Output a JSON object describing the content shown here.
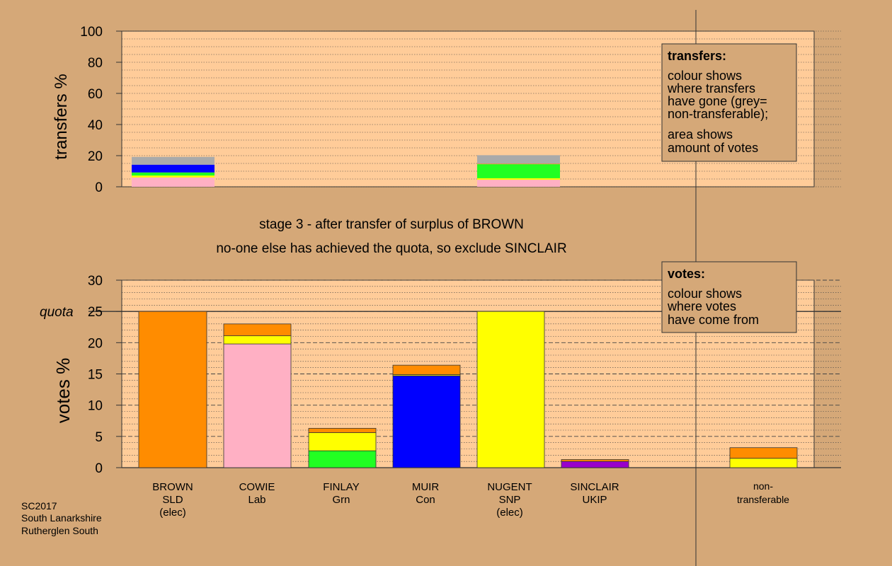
{
  "colors": {
    "background": "#D5A878",
    "plot_bg": "#FFCC99",
    "box_bg": "#D5A878",
    "orange": "#FF8C00",
    "pink": "#FFB0C4",
    "yellow": "#FFFF00",
    "green": "#22FF22",
    "blue": "#0000FF",
    "purple": "#9900CC",
    "grey": "#AAAAAA",
    "line": "#333333"
  },
  "top_chart": {
    "ylabel": "transfers %",
    "ticks": [
      "0",
      "20",
      "40",
      "60",
      "80",
      "100"
    ]
  },
  "bottom_chart": {
    "ylabel": "votes %",
    "ticks": [
      "0",
      "5",
      "10",
      "15",
      "20",
      "25",
      "30"
    ],
    "quota_label": "quota"
  },
  "stage_text": {
    "line1": "stage 3 - after transfer of surplus of BROWN",
    "line2": "no-one else has achieved the quota, so exclude SINCLAIR"
  },
  "transfers_box": {
    "title": "transfers:",
    "para1": [
      "colour shows",
      "where transfers",
      "have gone (grey=",
      "non-transferable);"
    ],
    "para2": [
      "area shows",
      "amount of votes"
    ]
  },
  "votes_box": {
    "title": "votes:",
    "para1": [
      "colour shows",
      "where votes",
      "have come from"
    ]
  },
  "candidates": [
    {
      "name": "BROWN",
      "party": "SLD",
      "status": "(elec)"
    },
    {
      "name": "COWIE",
      "party": "Lab",
      "status": ""
    },
    {
      "name": "FINLAY",
      "party": "Grn",
      "status": ""
    },
    {
      "name": "MUIR",
      "party": "Con",
      "status": ""
    },
    {
      "name": "NUGENT",
      "party": "SNP",
      "status": "(elec)"
    },
    {
      "name": "SINCLAIR",
      "party": "UKIP",
      "status": ""
    }
  ],
  "nontransferable_label": [
    "non-",
    "transferable"
  ],
  "footer": [
    "SC2017",
    "South Lanarkshire",
    "Rutherglen South"
  ],
  "chart_data": [
    {
      "type": "bar",
      "stacked": true,
      "ylabel": "transfers %",
      "ylim": [
        0,
        100
      ],
      "categories": [
        "BROWN",
        "COWIE",
        "FINLAY",
        "MUIR",
        "NUGENT",
        "SINCLAIR"
      ],
      "bars": [
        {
          "category": "BROWN",
          "segments": [
            {
              "color": "pink",
              "value": 6
            },
            {
              "color": "yellow",
              "value": 1.2
            },
            {
              "color": "green",
              "value": 2
            },
            {
              "color": "blue",
              "value": 5
            },
            {
              "color": "grey",
              "value": 5
            }
          ]
        },
        {
          "category": "NUGENT",
          "segments": [
            {
              "color": "pink",
              "value": 4.5
            },
            {
              "color": "yellow",
              "value": 1
            },
            {
              "color": "green",
              "value": 9
            },
            {
              "color": "orange",
              "value": 0.3
            },
            {
              "color": "grey",
              "value": 5.5
            }
          ]
        }
      ]
    },
    {
      "type": "bar",
      "stacked": true,
      "ylabel": "votes %",
      "ylim": [
        0,
        30
      ],
      "quota": 25,
      "categories": [
        "BROWN",
        "COWIE",
        "FINLAY",
        "MUIR",
        "NUGENT",
        "SINCLAIR",
        "non-transferable"
      ],
      "bars": [
        {
          "category": "BROWN",
          "segments": [
            {
              "color": "orange",
              "value": 25
            }
          ]
        },
        {
          "category": "COWIE",
          "segments": [
            {
              "color": "pink",
              "value": 19.8
            },
            {
              "color": "yellow",
              "value": 1.3
            },
            {
              "color": "orange",
              "value": 1.9
            }
          ]
        },
        {
          "category": "FINLAY",
          "segments": [
            {
              "color": "green",
              "value": 2.7
            },
            {
              "color": "yellow",
              "value": 2.9
            },
            {
              "color": "orange",
              "value": 0.7
            }
          ]
        },
        {
          "category": "MUIR",
          "segments": [
            {
              "color": "blue",
              "value": 14.7
            },
            {
              "color": "yellow",
              "value": 0.2
            },
            {
              "color": "orange",
              "value": 1.5
            }
          ]
        },
        {
          "category": "NUGENT",
          "segments": [
            {
              "color": "yellow",
              "value": 25
            }
          ]
        },
        {
          "category": "SINCLAIR",
          "segments": [
            {
              "color": "purple",
              "value": 1.0
            },
            {
              "color": "orange",
              "value": 0.3
            }
          ]
        },
        {
          "category": "non-transferable",
          "segments": [
            {
              "color": "yellow",
              "value": 1.5
            },
            {
              "color": "orange",
              "value": 1.7
            }
          ]
        }
      ]
    }
  ]
}
